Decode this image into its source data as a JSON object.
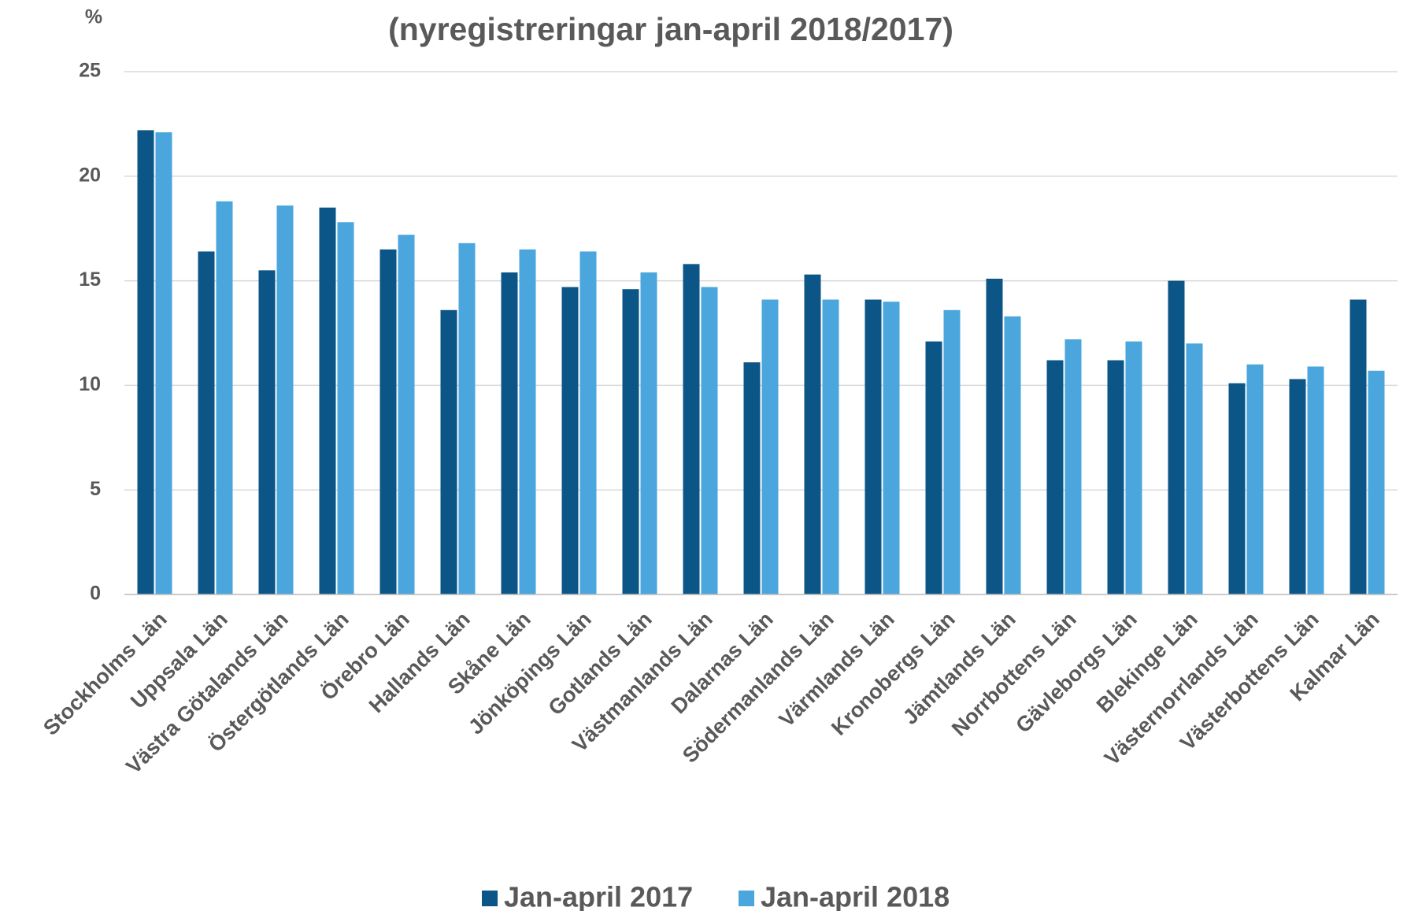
{
  "chart_data": {
    "type": "bar",
    "title": "(nyregistreringar jan-april 2018/2017)",
    "y_label": "%",
    "categories": [
      "Stockholms Län",
      "Uppsala Län",
      "Västra Götalands Län",
      "Östergötlands Län",
      "Örebro Län",
      "Hallands Län",
      "Skåne Län",
      "Jönköpings Län",
      "Gotlands Län",
      "Västmanlands Län",
      "Dalarnas Län",
      "Södermanlands Län",
      "Värmlands Län",
      "Kronobergs Län",
      "Jämtlands Län",
      "Norrbottens Län",
      "Gävleborgs Län",
      "Blekinge Län",
      "Västernorrlands Län",
      "Västerbottens Län",
      "Kalmar Län"
    ],
    "series": [
      {
        "name": "Jan-april 2017",
        "color": "#0b5687",
        "values": [
          22.2,
          16.4,
          15.5,
          18.5,
          16.5,
          13.6,
          15.4,
          14.7,
          14.6,
          15.8,
          11.1,
          15.3,
          14.1,
          12.1,
          15.1,
          11.2,
          11.2,
          15.0,
          10.1,
          10.3,
          14.1
        ]
      },
      {
        "name": "Jan-april 2018",
        "color": "#4aa6dc",
        "values": [
          22.1,
          18.8,
          18.6,
          17.8,
          17.2,
          16.8,
          16.5,
          16.4,
          15.4,
          14.7,
          14.1,
          14.1,
          14.0,
          13.6,
          13.3,
          12.2,
          12.1,
          12.0,
          11.0,
          10.9,
          10.7
        ]
      }
    ],
    "ylim": [
      0,
      25
    ],
    "yticks": [
      0,
      5,
      10,
      15,
      20,
      25
    ],
    "grid": true,
    "legend": "bottom"
  }
}
